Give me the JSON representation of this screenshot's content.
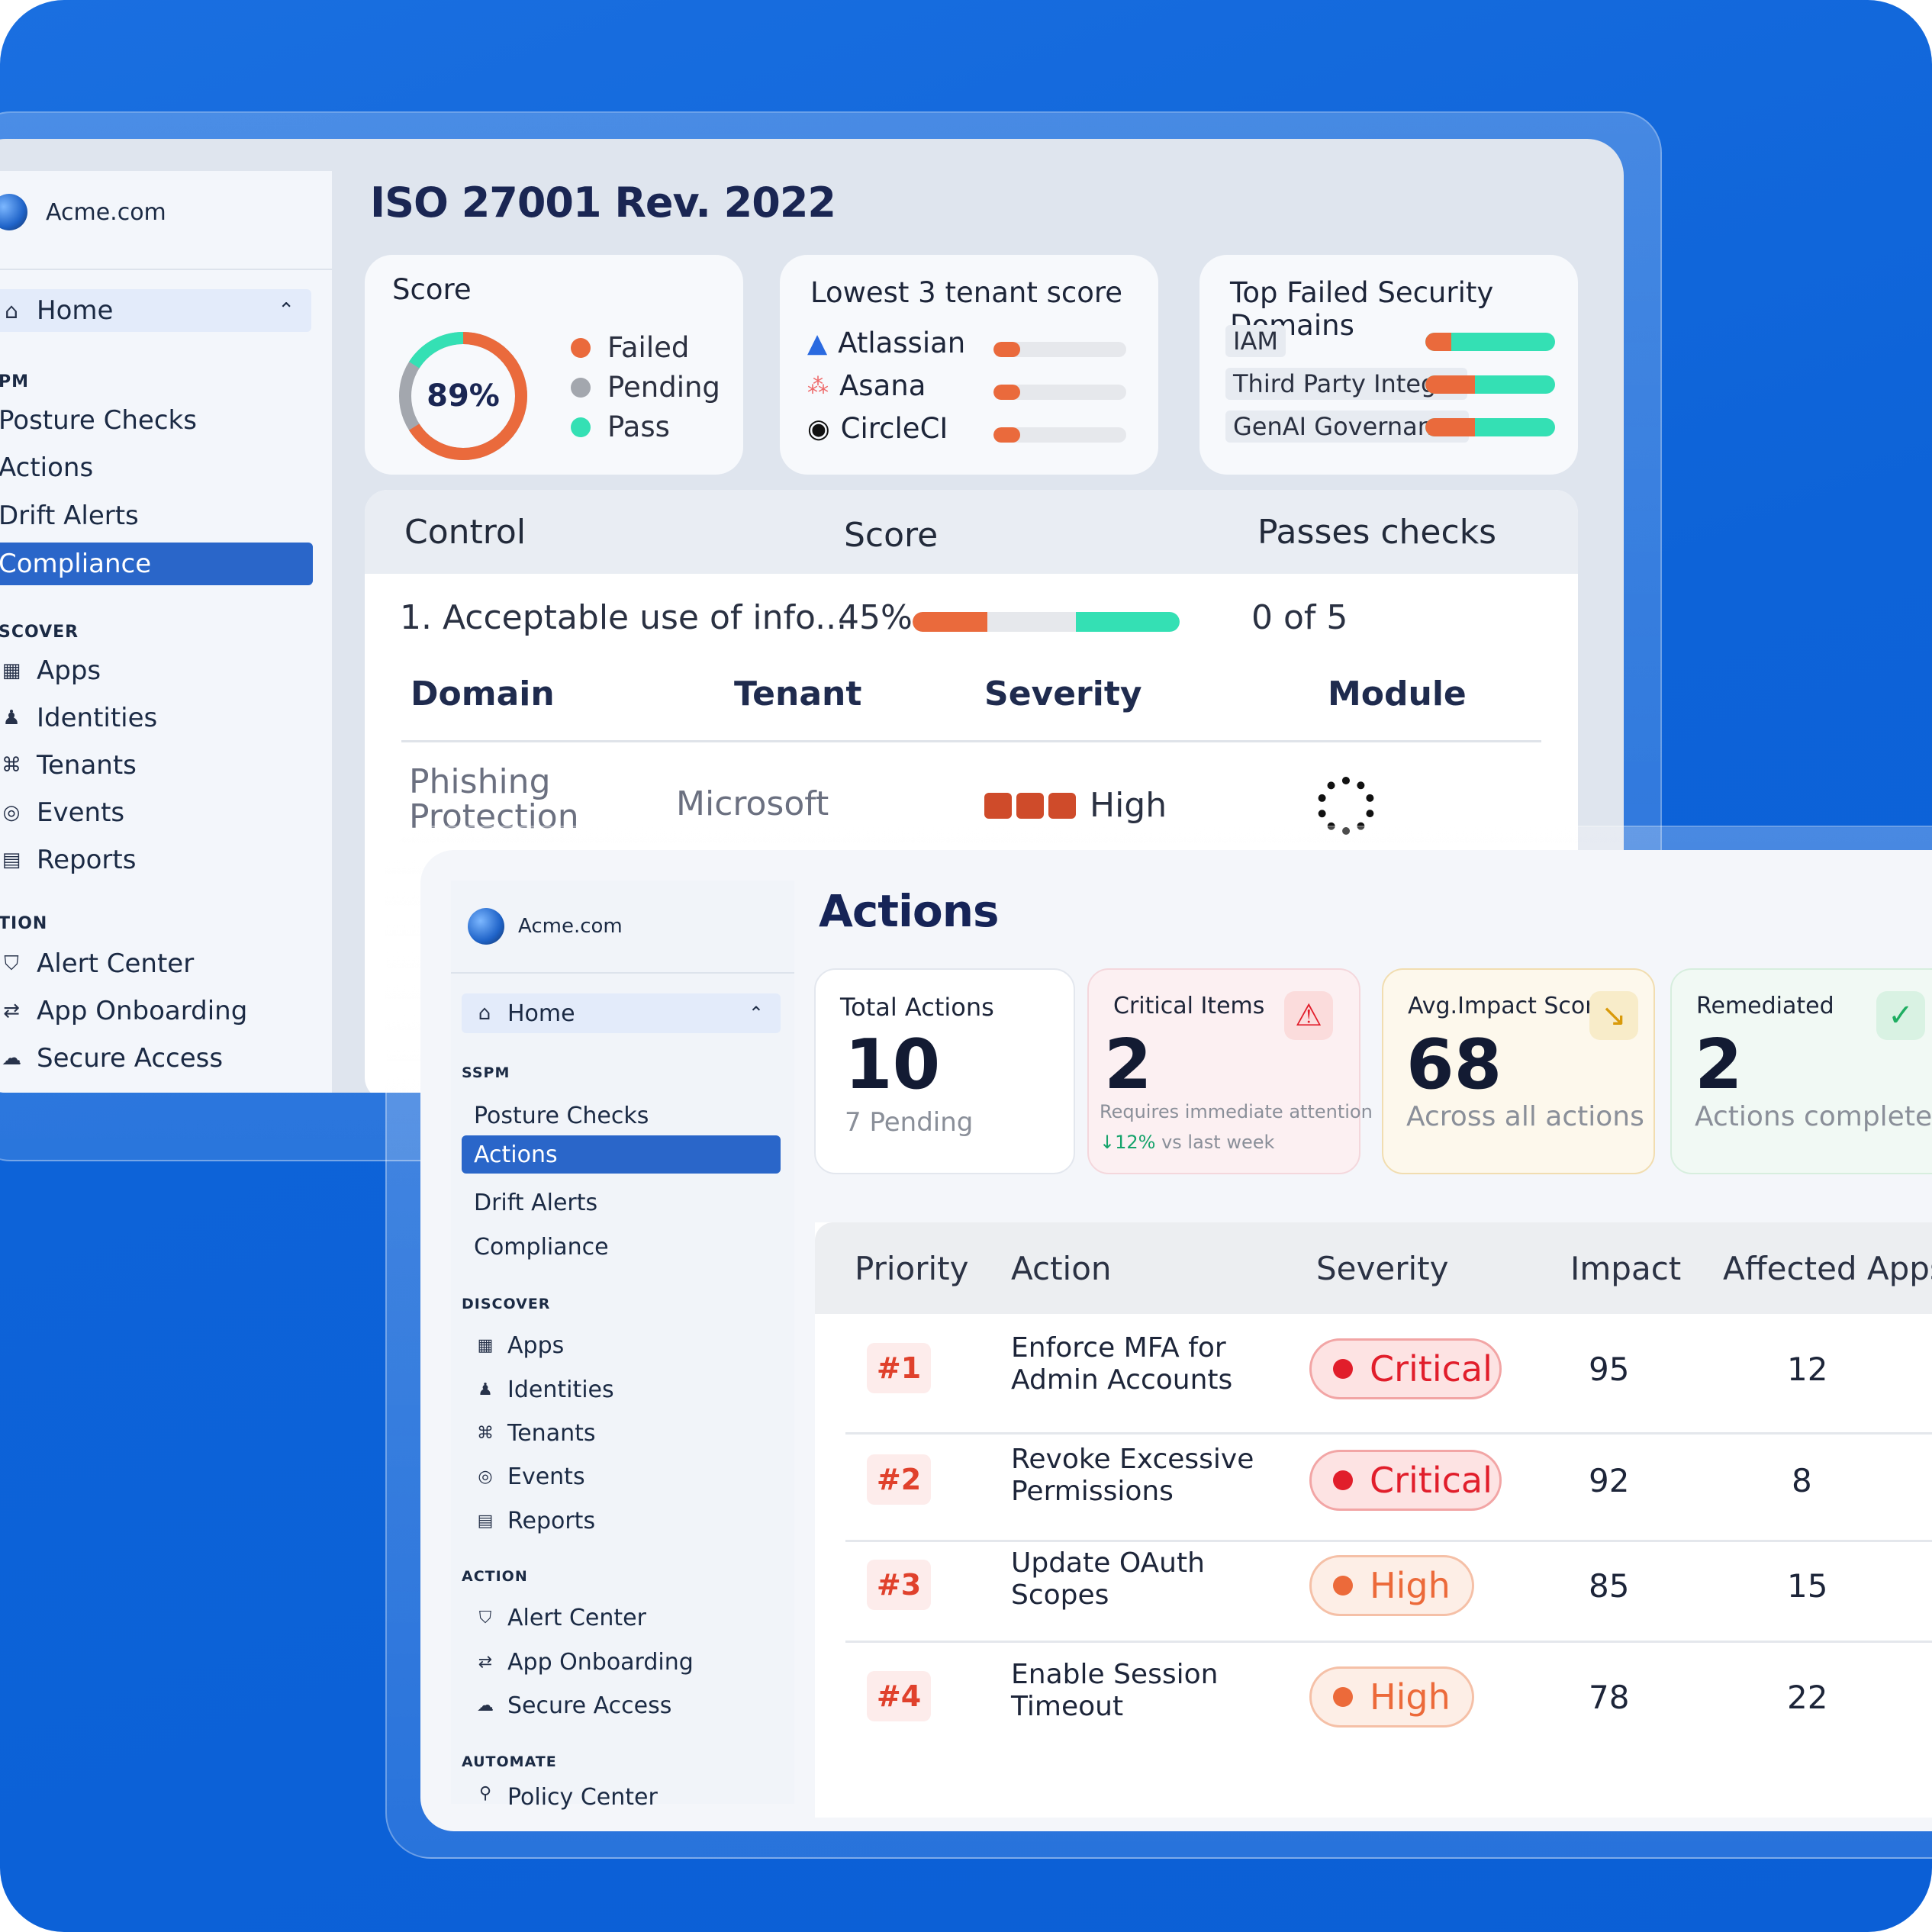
{
  "back": {
    "brand": "Acme.com",
    "home": "Home",
    "sections": [
      "PM",
      "SCOVER",
      "TION"
    ],
    "sspm_items": [
      "Posture Checks",
      "Actions",
      "Drift Alerts",
      "Compliance"
    ],
    "discover_items": [
      "Apps",
      "Identities",
      "Tenants",
      "Events",
      "Reports"
    ],
    "action_items": [
      "Alert Center",
      "App Onboarding",
      "Secure Access"
    ],
    "title": "ISO 27001 Rev. 2022",
    "score_card": {
      "title": "Score",
      "value": "89%",
      "legend": [
        "Failed",
        "Pending",
        "Pass"
      ],
      "segments": {
        "failed": 0.66,
        "pending": 0.18,
        "pass": 0.16
      }
    },
    "tenant_card": {
      "title": "Lowest 3 tenant score",
      "tenants": [
        {
          "name": "Atlassian",
          "fill": 0.2
        },
        {
          "name": "Asana",
          "fill": 0.2
        },
        {
          "name": "CircleCI",
          "fill": 0.2
        }
      ]
    },
    "domains_card": {
      "title": "Top Failed Security Domains",
      "domains": [
        {
          "name": "IAM",
          "failed": 0.2
        },
        {
          "name": "Third Party Integ...",
          "failed": 0.38
        },
        {
          "name": "GenAI Governance",
          "failed": 0.38
        }
      ]
    },
    "controls": {
      "headers": [
        "Control",
        "Score",
        "Passes checks"
      ],
      "row": {
        "name": "1. Acceptable use of info...",
        "score": "45%",
        "failed": 0.28,
        "pass": 0.39,
        "passes": "0 of 5"
      },
      "sub_headers": [
        "Domain",
        "Tenant",
        "Severity",
        "Module"
      ],
      "sub_row": {
        "domain": "Phishing Protection",
        "tenant": "Microsoft",
        "severity": "High"
      }
    }
  },
  "front": {
    "brand": "Acme.com",
    "home": "Home",
    "sections": {
      "sspm": "SSPM",
      "discover": "DISCOVER",
      "action": "ACTION",
      "automate": "AUTOMATE"
    },
    "sspm_items": [
      "Posture Checks",
      "Actions",
      "Drift Alerts",
      "Compliance"
    ],
    "discover_items": [
      "Apps",
      "Identities",
      "Tenants",
      "Events",
      "Reports"
    ],
    "action_items": [
      "Alert Center",
      "App Onboarding",
      "Secure Access"
    ],
    "automate_items": [
      "Policy Center"
    ],
    "title": "Actions",
    "stats": [
      {
        "label": "Total Actions",
        "value": "10",
        "sub": "7 Pending"
      },
      {
        "label": "Critical Items",
        "value": "2",
        "sub": "Requires immediate attention",
        "trend": "↓12%",
        "trend_text": "vs last week"
      },
      {
        "label": "Avg.Impact Score",
        "value": "68",
        "sub": "Across all actions"
      },
      {
        "label": "Remediated",
        "value": "2",
        "sub": "Actions completed"
      }
    ],
    "table": {
      "headers": [
        "Priority",
        "Action",
        "Severity",
        "Impact",
        "Affected Apps"
      ],
      "rows": [
        {
          "priority": "#1",
          "action": "Enforce MFA for Admin Accounts",
          "severity": "Critical",
          "impact": "95",
          "apps": "12"
        },
        {
          "priority": "#2",
          "action": "Revoke Excessive Permissions",
          "severity": "Critical",
          "impact": "92",
          "apps": "8"
        },
        {
          "priority": "#3",
          "action": "Update OAuth Scopes",
          "severity": "High",
          "impact": "85",
          "apps": "15"
        },
        {
          "priority": "#4",
          "action": "Enable Session Timeout",
          "severity": "High",
          "impact": "78",
          "apps": "22"
        }
      ]
    }
  },
  "colors": {
    "brand_blue": "#0d63d8",
    "failed": "#ea6a3c",
    "pass": "#34e0b4",
    "pending": "#a3a7ae",
    "critical": "#e11e2b",
    "high": "#ec6a3a",
    "active_nav": "#2a66c9"
  },
  "icons": {
    "home": "home-icon",
    "chevron": "chevron-up-icon",
    "apps": "grid-icon",
    "identities": "users-icon",
    "tenants": "tenants-icon",
    "events": "events-icon",
    "reports": "reports-icon",
    "alert": "shield-icon",
    "onboarding": "onboarding-icon",
    "secure": "cloud-icon",
    "warning": "warning-icon",
    "trend": "trend-down-icon",
    "check": "check-circle-icon"
  }
}
